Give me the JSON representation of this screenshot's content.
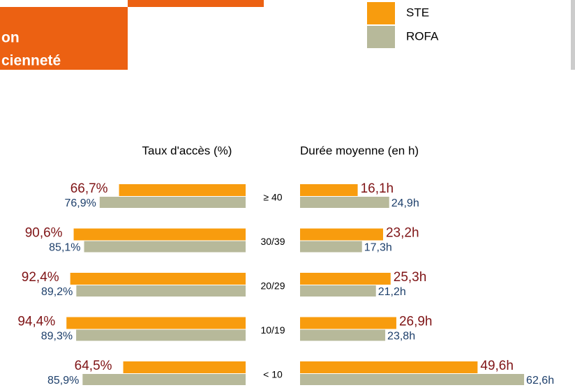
{
  "header": {
    "title_lines": [
      "on",
      "cienneté"
    ]
  },
  "chart_data": {
    "type": "bar",
    "orientation": "horizontal",
    "categories": [
      "≥ 40",
      "30/39",
      "20/29",
      "10/19",
      "< 10"
    ],
    "series": [
      {
        "name": "STE",
        "color": "#f89c0e",
        "label_color": "#7f1416"
      },
      {
        "name": "ROFA",
        "color": "#b7b99a",
        "label_color": "#1d3f6b"
      }
    ],
    "panels": [
      {
        "title": "Taux d'accès (%)",
        "direction": "left",
        "xlim": [
          0,
          100
        ],
        "series": [
          {
            "values": [
              66.7,
              90.6,
              92.4,
              94.4,
              64.5
            ],
            "value_labels": [
              "66,7%",
              "90,6%",
              "92,4%",
              "94,4%",
              "64,5%"
            ]
          },
          {
            "values": [
              76.9,
              85.1,
              89.2,
              89.3,
              85.9
            ],
            "value_labels": [
              "76,9%",
              "85,1%",
              "89,2%",
              "89,3%",
              "85,9%"
            ]
          }
        ]
      },
      {
        "title": "Durée moyenne (en h)",
        "direction": "right",
        "xlim": [
          0,
          70
        ],
        "series": [
          {
            "values": [
              16.1,
              23.2,
              25.3,
              26.9,
              49.6
            ],
            "value_labels": [
              "16,1h",
              "23,2h",
              "25,3h",
              "26,9h",
              "49,6h"
            ]
          },
          {
            "values": [
              24.9,
              17.3,
              21.2,
              23.8,
              62.6
            ],
            "value_labels": [
              "24,9h",
              "17,3h",
              "21,2h",
              "23,8h",
              "62,6h"
            ]
          }
        ]
      }
    ]
  }
}
